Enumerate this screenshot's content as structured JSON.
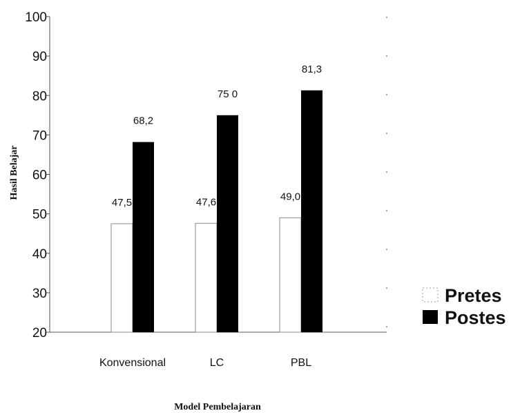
{
  "chart_data": {
    "type": "bar",
    "categories": [
      "Konvensional",
      "LC",
      "PBL"
    ],
    "series": [
      {
        "name": "Pretes",
        "values": [
          47.5,
          47.6,
          49.0
        ],
        "labels": [
          "47,5",
          "47,6",
          "49,0"
        ],
        "color": "#ffffff",
        "stroke": "#888888"
      },
      {
        "name": "Postes",
        "values": [
          68.2,
          75.0,
          81.3
        ],
        "labels": [
          "68,2",
          "75 0",
          "81,3"
        ],
        "color": "#000000"
      }
    ],
    "title": "",
    "xlabel": "Model Pembelajaran",
    "ylabel": "Hasil Belajar",
    "ylim": [
      20,
      100
    ],
    "yticks": [
      20,
      30,
      40,
      50,
      60,
      70,
      80,
      90,
      100
    ],
    "grid": false,
    "legend_position": "right"
  }
}
